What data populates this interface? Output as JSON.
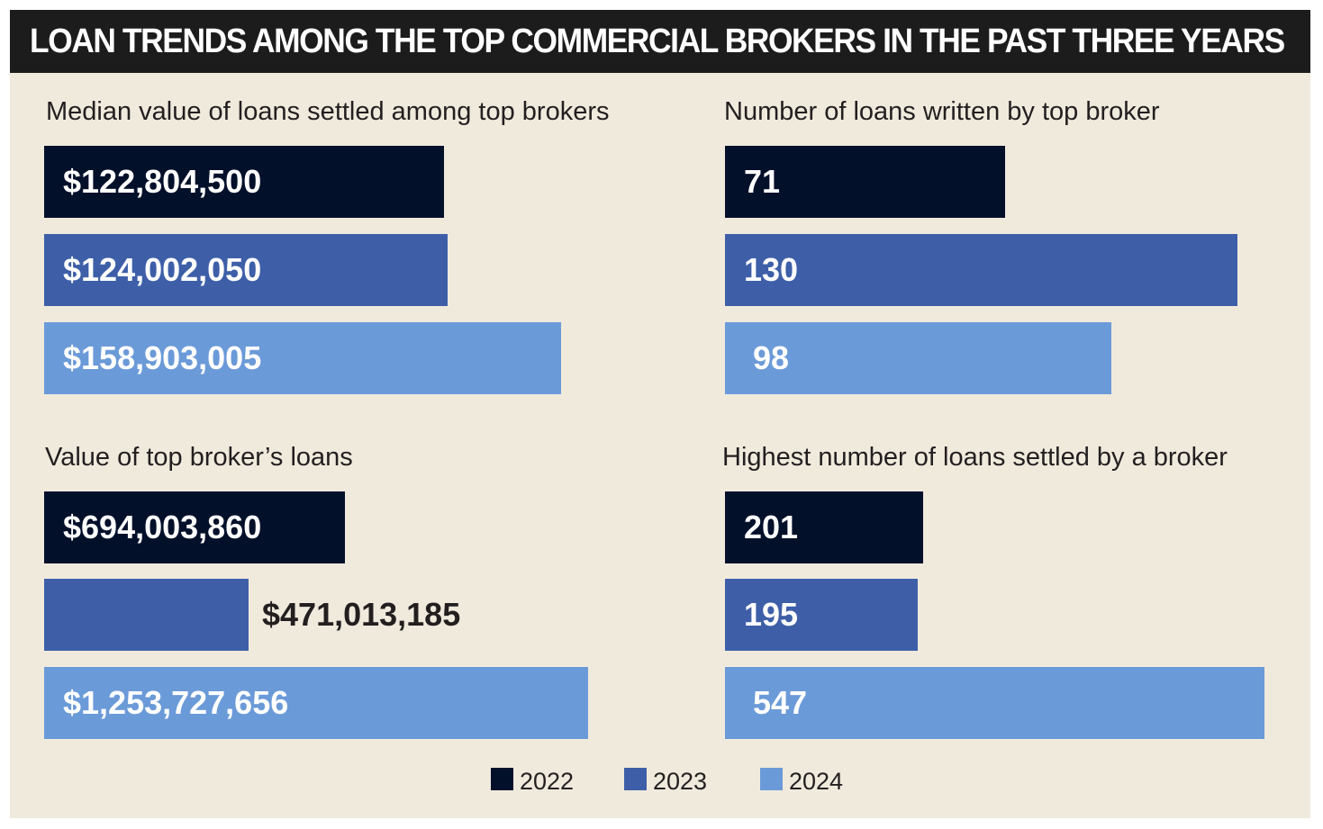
{
  "title": "LOAN TRENDS AMONG THE TOP COMMERCIAL BROKERS IN THE PAST THREE YEARS",
  "colors": {
    "2022": "#03102a",
    "2023": "#3e5fa8",
    "2024": "#6b9ad8",
    "background": "#f0eadd",
    "title_bar": "#1c1c1c"
  },
  "legend": [
    {
      "label": "2022",
      "color": "#03102a"
    },
    {
      "label": "2023",
      "color": "#3e5fa8"
    },
    {
      "label": "2024",
      "color": "#6b9ad8"
    }
  ],
  "chart_data": [
    {
      "type": "bar",
      "orientation": "horizontal",
      "title": "Median value of loans settled among top brokers",
      "categories": [
        "2022",
        "2023",
        "2024"
      ],
      "values": [
        122804500,
        124002050,
        158903005
      ],
      "value_labels": [
        "$122,804,500",
        "$124,002,050",
        "$158,903,005"
      ]
    },
    {
      "type": "bar",
      "orientation": "horizontal",
      "title": "Number of loans written by top broker",
      "categories": [
        "2022",
        "2023",
        "2024"
      ],
      "values": [
        71,
        130,
        98
      ],
      "value_labels": [
        "71",
        "130",
        "98"
      ]
    },
    {
      "type": "bar",
      "orientation": "horizontal",
      "title": "Value of top broker’s loans",
      "categories": [
        "2022",
        "2023",
        "2024"
      ],
      "values": [
        694003860,
        471013185,
        1253727656
      ],
      "value_labels": [
        "$694,003,860",
        "$471,013,185",
        "$1,253,727,656"
      ]
    },
    {
      "type": "bar",
      "orientation": "horizontal",
      "title": "Highest number of loans settled by a broker",
      "categories": [
        "2022",
        "2023",
        "2024"
      ],
      "values": [
        201,
        195,
        547
      ],
      "value_labels": [
        "201",
        "195",
        "547"
      ]
    }
  ]
}
